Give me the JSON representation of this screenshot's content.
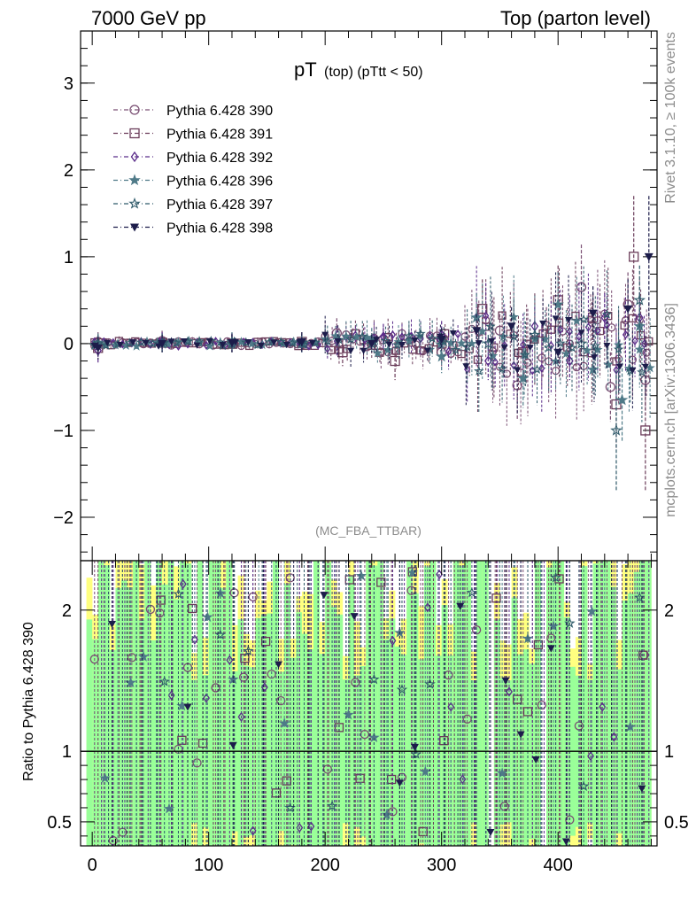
{
  "header": {
    "left": "7000 GeV pp",
    "right": "Top (parton level)"
  },
  "title": {
    "main": "pT",
    "sub": "(top) (pTtt < 50)"
  },
  "side_labels": {
    "rivet": "Rivet 3.1.10, ≥ 100k events",
    "mcplots": "mcplots.cern.ch [arXiv:1306.3436]"
  },
  "analysis": "(MC_FBA_TTBAR)",
  "ratio_ylabel": "Ratio to Pythia 6.428 390",
  "colors": {
    "green_band": "#99ff99",
    "yellow_band": "#ffff80",
    "axis": "#000000"
  },
  "chart_data": [
    {
      "type": "scatter",
      "panel": "main",
      "xlim": [
        -10,
        485
      ],
      "ylim": [
        -2.5,
        3.6
      ],
      "yticks": [
        -2,
        -1,
        0,
        1,
        2,
        3
      ],
      "xticks": [
        0,
        100,
        200,
        300,
        400
      ],
      "series": [
        {
          "name": "Pythia 6.428 390",
          "marker": "circle-open",
          "color": "#7a4f73",
          "x": [
            5,
            60,
            120,
            180,
            210,
            250,
            300,
            350,
            365,
            390,
            420,
            445,
            460,
            475
          ],
          "y": [
            0.02,
            0.03,
            0.0,
            0.0,
            0.12,
            0.05,
            -0.1,
            0.15,
            -0.48,
            0.2,
            0.65,
            -0.5,
            0.45,
            -0.42
          ]
        },
        {
          "name": "Pythia 6.428 391",
          "marker": "square-open",
          "color": "#6b3d5a",
          "x": [
            5,
            60,
            120,
            180,
            215,
            260,
            300,
            335,
            370,
            400,
            430,
            450,
            465,
            475
          ],
          "y": [
            -0.05,
            0.01,
            0.0,
            0.02,
            -0.1,
            -0.2,
            0.0,
            0.4,
            -0.1,
            0.5,
            0.3,
            -0.7,
            1.0,
            -1.0
          ]
        },
        {
          "name": "Pythia 6.428 392",
          "marker": "diamond-open",
          "color": "#5b2d8a",
          "x": [
            5,
            60,
            120,
            180,
            250,
            300,
            340,
            380,
            410,
            440,
            470
          ],
          "y": [
            -0.08,
            0.02,
            0.01,
            0.0,
            0.08,
            0.1,
            -0.2,
            0.2,
            -0.2,
            0.3,
            0.3
          ]
        },
        {
          "name": "Pythia 6.428 396",
          "marker": "star-filled",
          "color": "#4f7a88",
          "x": [
            5,
            60,
            120,
            180,
            240,
            300,
            330,
            370,
            400,
            430,
            455,
            470
          ],
          "y": [
            0.01,
            0.0,
            0.02,
            0.0,
            0.05,
            -0.15,
            0.3,
            -0.4,
            0.45,
            -0.3,
            -0.65,
            0.2
          ]
        },
        {
          "name": "Pythia 6.428 397",
          "marker": "star-open",
          "color": "#2f5a6a",
          "x": [
            5,
            60,
            120,
            180,
            240,
            300,
            340,
            380,
            420,
            450,
            470
          ],
          "y": [
            0.0,
            0.01,
            0.0,
            0.01,
            0.0,
            0.05,
            0.0,
            0.1,
            0.0,
            -1.0,
            0.5
          ]
        },
        {
          "name": "Pythia 6.428 398",
          "marker": "triangle-down-filled",
          "color": "#1c1c4a",
          "x": [
            5,
            60,
            120,
            180,
            240,
            300,
            330,
            360,
            400,
            430,
            460,
            478
          ],
          "y": [
            -0.05,
            0.0,
            0.01,
            0.02,
            0.0,
            0.05,
            0.15,
            0.2,
            -0.1,
            0.35,
            0.4,
            1.0
          ]
        }
      ]
    },
    {
      "type": "scatter",
      "panel": "ratio",
      "ylabel": "Ratio to Pythia 6.428 390",
      "xlim": [
        -10,
        485
      ],
      "ylim": [
        0.33,
        2.35
      ],
      "yticks": [
        0.5,
        1,
        2
      ],
      "ytick_labels": [
        "0.5",
        "1",
        "2"
      ],
      "xticks": [
        0,
        100,
        200,
        300,
        400
      ],
      "reference_line": 1
    }
  ]
}
